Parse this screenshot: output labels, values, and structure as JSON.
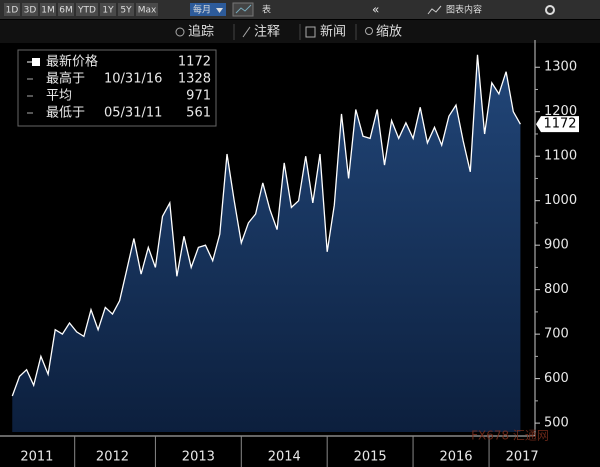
{
  "toolbar": {
    "ranges": [
      "1D",
      "3D",
      "1M",
      "6M",
      "YTD",
      "1Y",
      "5Y",
      "Max"
    ],
    "period": "每月",
    "table": "表",
    "content": "图表内容",
    "tools": [
      "追踪",
      "注释",
      "新闻",
      "缩放"
    ]
  },
  "chart_data": {
    "type": "area",
    "x": [
      2011.333,
      2011.417,
      2011.5,
      2011.583,
      2011.667,
      2011.75,
      2011.833,
      2011.917,
      2012.0,
      2012.083,
      2012.167,
      2012.25,
      2012.333,
      2012.417,
      2012.5,
      2012.583,
      2012.667,
      2012.75,
      2012.833,
      2012.917,
      2013.0,
      2013.083,
      2013.167,
      2013.25,
      2013.333,
      2013.417,
      2013.5,
      2013.583,
      2013.667,
      2013.75,
      2013.833,
      2013.917,
      2014.0,
      2014.083,
      2014.167,
      2014.25,
      2014.333,
      2014.417,
      2014.5,
      2014.583,
      2014.667,
      2014.75,
      2014.833,
      2014.917,
      2015.0,
      2015.083,
      2015.167,
      2015.25,
      2015.333,
      2015.417,
      2015.5,
      2015.583,
      2015.667,
      2015.75,
      2015.833,
      2015.917,
      2016.0,
      2016.083,
      2016.167,
      2016.25,
      2016.333,
      2016.417,
      2016.5,
      2016.583,
      2016.667,
      2016.75,
      2016.833,
      2016.917,
      2017.0,
      2017.083,
      2017.167,
      2017.25
    ],
    "values": [
      561,
      605,
      620,
      585,
      650,
      610,
      710,
      700,
      725,
      705,
      695,
      755,
      710,
      760,
      745,
      775,
      845,
      915,
      835,
      895,
      850,
      965,
      995,
      830,
      920,
      850,
      895,
      900,
      865,
      925,
      1105,
      1000,
      905,
      950,
      970,
      1040,
      980,
      935,
      1085,
      985,
      1000,
      1100,
      995,
      1105,
      885,
      990,
      1195,
      1050,
      1205,
      1145,
      1140,
      1205,
      1080,
      1180,
      1140,
      1175,
      1140,
      1210,
      1130,
      1165,
      1125,
      1190,
      1215,
      1135,
      1065,
      1328,
      1150,
      1265,
      1240,
      1290,
      1200,
      1172
    ],
    "color": "#ffffff",
    "fill": "#1d3d6a",
    "xlim": [
      2011.33,
      2017.42
    ],
    "ylim": [
      480,
      1350
    ],
    "yticks": [
      500,
      600,
      700,
      800,
      900,
      1000,
      1100,
      1200,
      1300
    ],
    "xticks": [
      {
        "value": 2011.62,
        "label": "2011"
      },
      {
        "value": 2012.5,
        "label": "2012"
      },
      {
        "value": 2013.5,
        "label": "2013"
      },
      {
        "value": 2014.5,
        "label": "2014"
      },
      {
        "value": 2015.5,
        "label": "2015"
      },
      {
        "value": 2016.5,
        "label": "2016"
      },
      {
        "value": 2017.27,
        "label": "2017"
      }
    ],
    "legend": [
      {
        "label": "最新价格",
        "value": 1172
      },
      {
        "label": "最高于",
        "date": "10/31/16",
        "value": 1328
      },
      {
        "label": "平均",
        "value": 971
      },
      {
        "label": "最低于",
        "date": "05/31/11",
        "value": 561
      }
    ],
    "watermark": "FX678 汇通网"
  }
}
